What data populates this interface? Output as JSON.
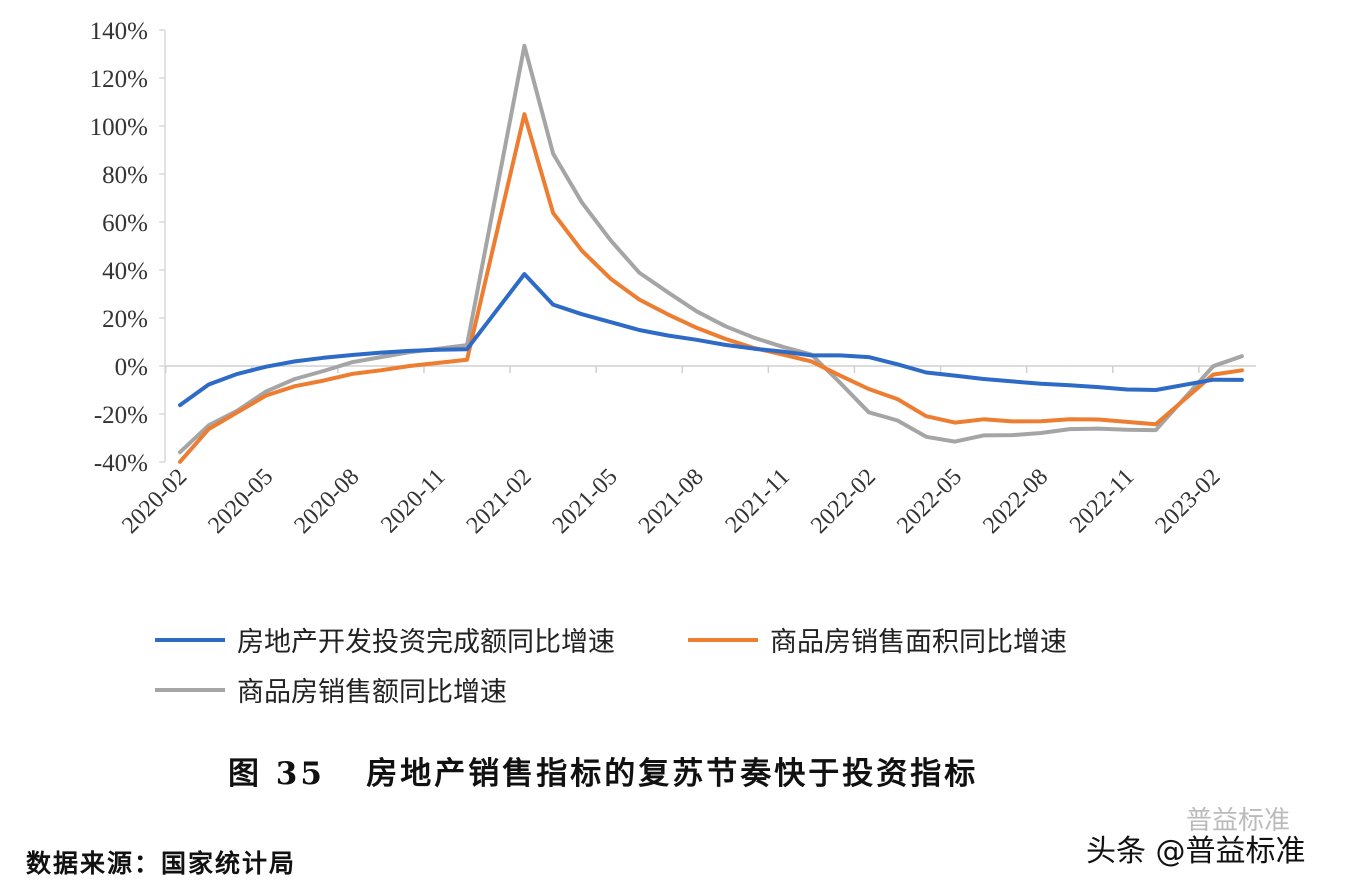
{
  "chart_data": {
    "type": "line",
    "ylim": [
      -40,
      140
    ],
    "yticks": [
      "140%",
      "120%",
      "100%",
      "80%",
      "60%",
      "40%",
      "20%",
      "0%",
      "-20%",
      "-40%"
    ],
    "ytick_values": [
      140,
      120,
      100,
      80,
      60,
      40,
      20,
      0,
      -20,
      -40
    ],
    "x_range": [
      "2020-02",
      "2023-03"
    ],
    "xtick_labels": [
      "2020-02",
      "2020-05",
      "2020-08",
      "2020-11",
      "2021-02",
      "2021-05",
      "2021-08",
      "2021-11",
      "2022-02",
      "2022-05",
      "2022-08",
      "2022-11",
      "2023-02"
    ],
    "grid": false,
    "legend_placement": "bottom",
    "x": [
      "2020-02",
      "2020-03",
      "2020-04",
      "2020-05",
      "2020-06",
      "2020-07",
      "2020-08",
      "2020-09",
      "2020-10",
      "2020-11",
      "2020-12",
      "2021-02",
      "2021-03",
      "2021-04",
      "2021-05",
      "2021-06",
      "2021-07",
      "2021-08",
      "2021-09",
      "2021-10",
      "2021-11",
      "2021-12",
      "2022-01",
      "2022-02",
      "2022-03",
      "2022-04",
      "2022-05",
      "2022-06",
      "2022-07",
      "2022-08",
      "2022-09",
      "2022-10",
      "2022-11",
      "2022-12",
      "2023-02",
      "2023-03"
    ],
    "series": [
      {
        "name": "房地产开发投资完成额同比增速",
        "color": "#2e6bc6",
        "values": [
          -16.3,
          -7.7,
          -3.3,
          -0.3,
          1.9,
          3.4,
          4.6,
          5.6,
          6.3,
          6.8,
          7.0,
          38.3,
          25.6,
          21.6,
          18.3,
          15.0,
          12.7,
          10.9,
          8.8,
          7.2,
          6.0,
          4.4,
          4.4,
          3.7,
          0.7,
          -2.7,
          -4.0,
          -5.4,
          -6.4,
          -7.4,
          -8.0,
          -8.8,
          -9.8,
          -10.0,
          -5.7,
          -5.8
        ]
      },
      {
        "name": "商品房销售面积同比增速",
        "color": "#ed7d31",
        "values": [
          -39.9,
          -26.3,
          -19.3,
          -12.3,
          -8.4,
          -6.1,
          -3.3,
          -1.8,
          0.0,
          1.3,
          2.6,
          104.9,
          63.8,
          48.1,
          36.4,
          27.7,
          21.5,
          15.9,
          11.3,
          7.5,
          4.8,
          1.9,
          -4.0,
          -9.6,
          -13.8,
          -20.9,
          -23.6,
          -22.2,
          -23.1,
          -23.0,
          -22.2,
          -22.3,
          -23.3,
          -24.3,
          -3.6,
          -1.8
        ]
      },
      {
        "name": "商品房销售额同比增速",
        "color": "#a5a5a5",
        "values": [
          -35.9,
          -24.7,
          -18.6,
          -10.6,
          -5.4,
          -2.1,
          1.6,
          3.7,
          5.8,
          7.2,
          8.7,
          133.4,
          88.5,
          68.2,
          52.4,
          38.9,
          30.7,
          22.8,
          16.6,
          11.8,
          8.0,
          4.8,
          -7.0,
          -19.3,
          -22.7,
          -29.5,
          -31.5,
          -28.9,
          -28.8,
          -27.9,
          -26.3,
          -26.1,
          -26.6,
          -26.7,
          -0.1,
          4.1
        ]
      }
    ]
  },
  "caption": "图 35   房地产销售指标的复苏节奏快于投资指标",
  "source": "数据来源：国家统计局",
  "watermark": "头条 @普益标准",
  "watermark_faint": "普益标准"
}
